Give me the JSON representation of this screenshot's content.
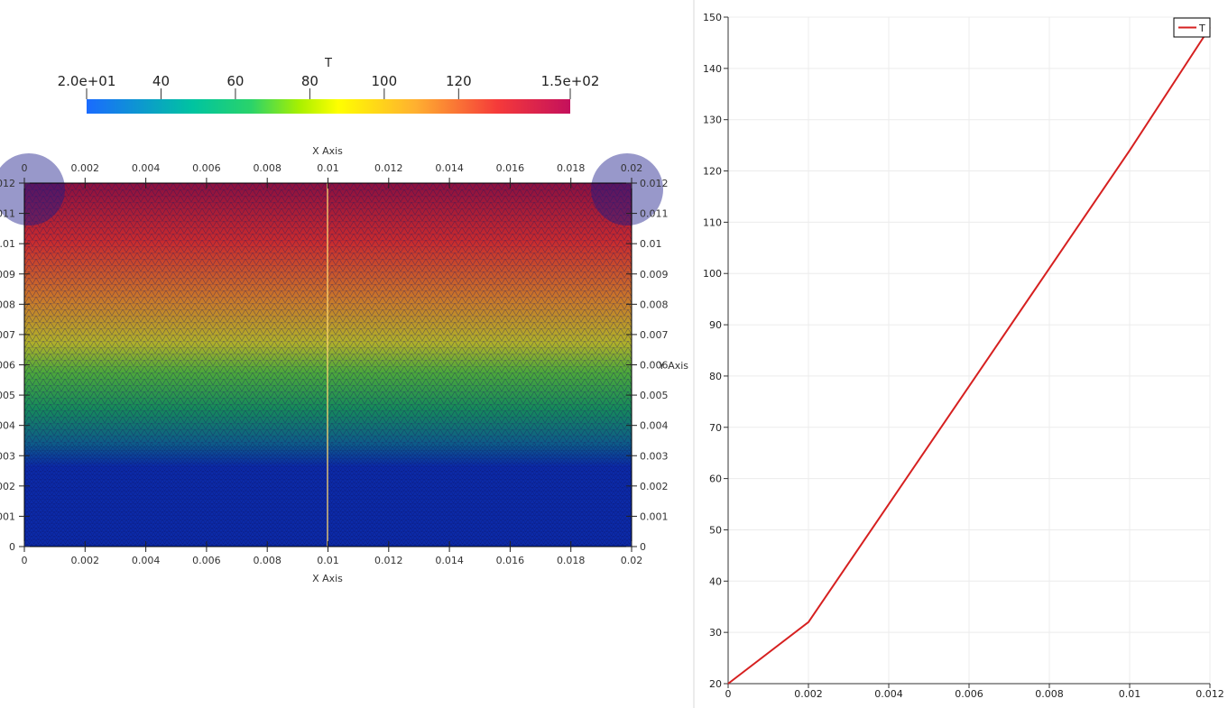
{
  "colorbar": {
    "title": "T",
    "tick_labels": [
      "2.0e+01",
      "40",
      "60",
      "80",
      "100",
      "120",
      "1.5e+02"
    ],
    "tick_values": [
      20,
      40,
      60,
      80,
      100,
      120,
      150
    ],
    "range": [
      20,
      150
    ],
    "colors": [
      "#1a6bff",
      "#00c4a0",
      "#2ad36a",
      "#a8f000",
      "#ffff00",
      "#ffb030",
      "#f53a3a",
      "#c4105c"
    ]
  },
  "mesh_view": {
    "x_axis_label": "X Axis",
    "y_axis_label": "Y Axis",
    "x_tick_labels": [
      "0",
      "0.002",
      "0.004",
      "0.006",
      "0.008",
      "0.01",
      "0.012",
      "0.014",
      "0.016",
      "0.018",
      "0.02"
    ],
    "y_tick_labels": [
      "0",
      "0.001",
      "0.002",
      "0.003",
      "0.004",
      "0.005",
      "0.006",
      "0.007",
      "0.008",
      "0.009",
      "0.01",
      "0.011",
      "0.012"
    ],
    "x_range": [
      0,
      0.02
    ],
    "y_range": [
      0,
      0.012
    ],
    "field": "T"
  },
  "chart_data": {
    "type": "line",
    "title": "",
    "xlabel": "",
    "ylabel": "",
    "xlim": [
      0,
      0.012
    ],
    "ylim": [
      20,
      150
    ],
    "x_ticks": [
      "0",
      "0.002",
      "0.004",
      "0.006",
      "0.008",
      "0.01",
      "0.012"
    ],
    "y_ticks": [
      "20",
      "30",
      "40",
      "50",
      "60",
      "70",
      "80",
      "90",
      "100",
      "110",
      "120",
      "130",
      "140",
      "150"
    ],
    "grid": true,
    "legend_position": "top-right",
    "series": [
      {
        "name": "T",
        "color": "#d62020",
        "x": [
          0,
          0.002,
          0.004,
          0.006,
          0.008,
          0.01,
          0.012
        ],
        "y": [
          20,
          32,
          55,
          78,
          101,
          124,
          148
        ]
      }
    ]
  }
}
